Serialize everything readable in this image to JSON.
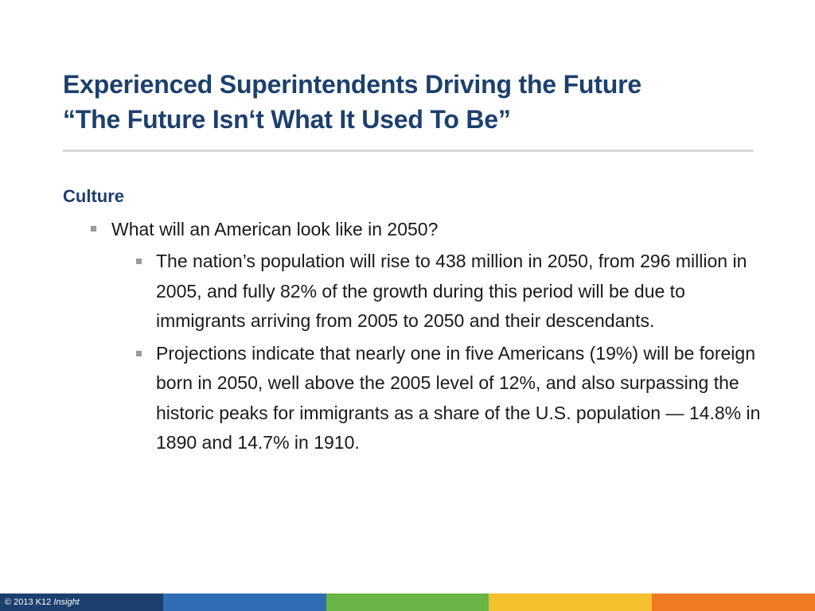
{
  "slide": {
    "title_line1": "Experienced Superintendents Driving the Future",
    "title_line2": "“The Future Isn‘t What It Used To Be”",
    "section_heading": "Culture",
    "bullet_level1": "What will an American look like in 2050?",
    "bullets_level2": [
      "The nation’s population will rise to 438 million in 2050, from 296 million in 2005, and fully 82% of the growth during this period will be due to immigrants arriving from 2005 to 2050 and their descendants.",
      "Projections indicate that nearly one in five Americans (19%) will be foreign born in 2050, well above the 2005 level of 12%, and also surpassing the historic peaks for immigrants as a share of the U.S. population — 14.8% in 1890 and 14.7% in 1910."
    ]
  },
  "footer": {
    "copyright_prefix": "© 2013 K12 ",
    "copyright_brand": "Insight",
    "colors": [
      "#1c3f6e",
      "#2f6eb5",
      "#6bb446",
      "#f5c12e",
      "#f07a24"
    ]
  },
  "theme": {
    "title_color": "#1c3f6e",
    "text_color": "#1a1a1a",
    "bullet_color": "#9a9a9a",
    "rule_color": "#d9d9d9"
  }
}
